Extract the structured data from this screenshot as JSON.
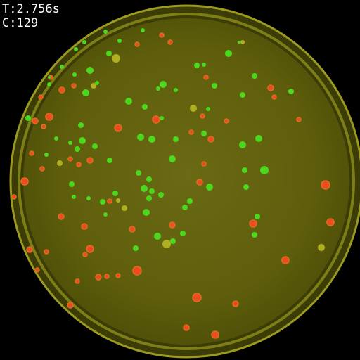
{
  "overlay": {
    "time_text": "T:2.756s",
    "count_text": "C:129"
  },
  "colors": {
    "background": "#000000",
    "plate_rim": "#8a8a18",
    "plate_agar": "#5f5f0a",
    "agar_center": "#666612",
    "colony_green": "#4bd81e",
    "colony_orange": "#d8701e",
    "colony_orange_core": "#f04a22",
    "colony_yellow": "#b0b020",
    "hud_text": "#ffffff"
  }
}
